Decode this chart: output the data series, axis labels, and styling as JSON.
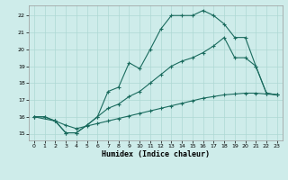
{
  "xlabel": "Humidex (Indice chaleur)",
  "background_color": "#ceecea",
  "grid_color": "#aed8d4",
  "line_color": "#1a6b5e",
  "xlim": [
    -0.5,
    23.5
  ],
  "ylim": [
    14.6,
    22.6
  ],
  "xticks": [
    0,
    1,
    2,
    3,
    4,
    5,
    6,
    7,
    8,
    9,
    10,
    11,
    12,
    13,
    14,
    15,
    16,
    17,
    18,
    19,
    20,
    21,
    22,
    23
  ],
  "yticks": [
    15,
    16,
    17,
    18,
    19,
    20,
    21,
    22
  ],
  "curve1_x": [
    0,
    1,
    2,
    3,
    4,
    5,
    6,
    7,
    8,
    9,
    10,
    11,
    12,
    13,
    14,
    15,
    16,
    17,
    18,
    19,
    20,
    21,
    22,
    23
  ],
  "curve1_y": [
    16.0,
    16.0,
    15.75,
    15.05,
    15.05,
    15.5,
    16.0,
    17.5,
    17.75,
    19.2,
    18.85,
    20.0,
    21.2,
    22.0,
    22.0,
    22.0,
    22.3,
    22.0,
    21.5,
    20.7,
    20.7,
    19.0,
    17.4,
    17.3
  ],
  "curve2_x": [
    0,
    2,
    3,
    4,
    5,
    6,
    7,
    8,
    9,
    10,
    11,
    12,
    13,
    14,
    15,
    16,
    17,
    18,
    19,
    20,
    21,
    22,
    23
  ],
  "curve2_y": [
    16.0,
    15.75,
    15.05,
    15.05,
    15.5,
    16.0,
    16.5,
    16.75,
    17.2,
    17.5,
    18.0,
    18.5,
    19.0,
    19.3,
    19.5,
    19.8,
    20.2,
    20.7,
    19.5,
    19.5,
    19.0,
    17.4,
    17.3
  ],
  "curve3_x": [
    0,
    1,
    2,
    3,
    4,
    5,
    6,
    7,
    8,
    9,
    10,
    11,
    12,
    13,
    14,
    15,
    16,
    17,
    18,
    19,
    20,
    21,
    22,
    23
  ],
  "curve3_y": [
    16.0,
    16.0,
    15.75,
    15.5,
    15.3,
    15.45,
    15.6,
    15.75,
    15.9,
    16.05,
    16.2,
    16.35,
    16.5,
    16.65,
    16.8,
    16.95,
    17.1,
    17.2,
    17.3,
    17.35,
    17.4,
    17.4,
    17.35,
    17.3
  ]
}
